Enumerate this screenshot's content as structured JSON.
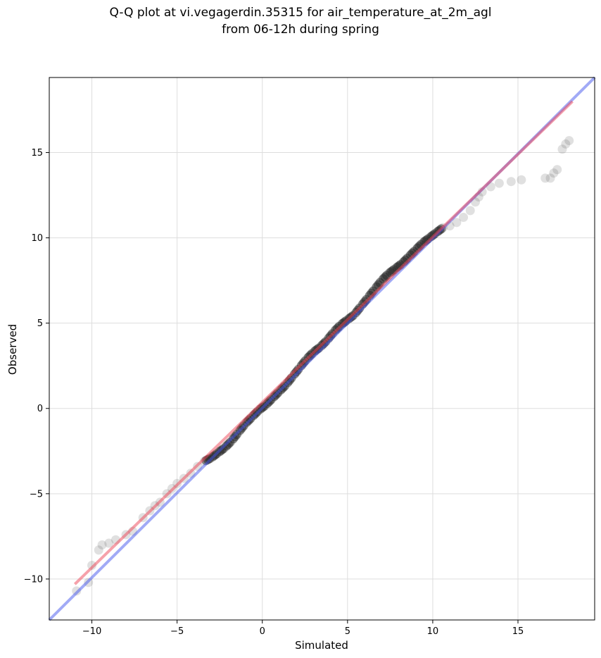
{
  "chart_data": {
    "type": "scatter",
    "title": "Q-Q plot at vi.vegagerdin.35315 for air_temperature_at_2m_agl",
    "subtitle": "from 06-12h during spring",
    "xlabel": "Simulated",
    "ylabel": "Observed",
    "xlim": [
      -12.5,
      19.5
    ],
    "ylim": [
      -12.4,
      19.4
    ],
    "xticks": [
      -10,
      -5,
      0,
      5,
      10,
      15
    ],
    "yticks": [
      -10,
      -5,
      0,
      5,
      10,
      15
    ],
    "xtick_labels": [
      "−10",
      "−5",
      "0",
      "5",
      "10",
      "15"
    ],
    "ytick_labels": [
      "−10",
      "−5",
      "0",
      "5",
      "10",
      "15"
    ],
    "grid": true,
    "colors": {
      "points": "#555555",
      "identity_line": "#4455ee",
      "fit_line": "#ee4455",
      "grid": "#dddddd"
    },
    "series": [
      {
        "type": "scatter",
        "values": [
          [
            -10.9,
            -10.7
          ],
          [
            -10.2,
            -10.2
          ],
          [
            -10.0,
            -9.2
          ],
          [
            -9.6,
            -8.3
          ],
          [
            -9.4,
            -8.0
          ],
          [
            -9.0,
            -7.9
          ],
          [
            -8.6,
            -7.7
          ],
          [
            -8.0,
            -7.4
          ],
          [
            -7.6,
            -7.2
          ],
          [
            -7.0,
            -6.4
          ],
          [
            -6.6,
            -6.0
          ],
          [
            -6.3,
            -5.7
          ],
          [
            -6.0,
            -5.5
          ],
          [
            -5.6,
            -5.0
          ],
          [
            -5.3,
            -4.7
          ],
          [
            -5.0,
            -4.4
          ],
          [
            -4.6,
            -4.1
          ],
          [
            -4.2,
            -3.8
          ],
          [
            -3.8,
            -3.4
          ],
          [
            -3.4,
            -3.1
          ],
          [
            -3.0,
            -2.9
          ],
          [
            -2.6,
            -2.6
          ],
          [
            -2.2,
            -2.3
          ],
          [
            -1.8,
            -1.9
          ],
          [
            -1.4,
            -1.4
          ],
          [
            -1.0,
            -0.9
          ],
          [
            -0.6,
            -0.5
          ],
          [
            -0.2,
            -0.1
          ],
          [
            0.2,
            0.2
          ],
          [
            0.6,
            0.6
          ],
          [
            1.0,
            1.0
          ],
          [
            1.4,
            1.4
          ],
          [
            1.8,
            1.9
          ],
          [
            2.2,
            2.4
          ],
          [
            2.6,
            2.9
          ],
          [
            3.0,
            3.3
          ],
          [
            3.4,
            3.6
          ],
          [
            3.8,
            4.0
          ],
          [
            4.2,
            4.5
          ],
          [
            4.6,
            4.9
          ],
          [
            5.0,
            5.2
          ],
          [
            5.4,
            5.5
          ],
          [
            5.8,
            6.0
          ],
          [
            6.2,
            6.5
          ],
          [
            6.6,
            7.0
          ],
          [
            7.0,
            7.5
          ],
          [
            7.4,
            7.9
          ],
          [
            7.8,
            8.2
          ],
          [
            8.2,
            8.5
          ],
          [
            8.6,
            8.9
          ],
          [
            9.0,
            9.3
          ],
          [
            9.4,
            9.7
          ],
          [
            9.8,
            10.0
          ],
          [
            10.2,
            10.3
          ],
          [
            10.6,
            10.6
          ],
          [
            11.0,
            10.7
          ],
          [
            11.4,
            10.9
          ],
          [
            11.8,
            11.2
          ],
          [
            12.2,
            11.6
          ],
          [
            12.5,
            12.1
          ],
          [
            12.7,
            12.4
          ],
          [
            12.9,
            12.7
          ],
          [
            13.4,
            13.0
          ],
          [
            13.9,
            13.2
          ],
          [
            14.6,
            13.3
          ],
          [
            15.2,
            13.4
          ],
          [
            16.6,
            13.5
          ],
          [
            16.9,
            13.5
          ],
          [
            17.1,
            13.8
          ],
          [
            17.3,
            14.0
          ],
          [
            17.6,
            15.2
          ],
          [
            17.8,
            15.5
          ],
          [
            18.0,
            15.7
          ]
        ]
      },
      {
        "type": "line",
        "name": "",
        "values": [
          [
            -12.5,
            -12.4
          ],
          [
            19.5,
            19.4
          ]
        ]
      },
      {
        "type": "line",
        "name": "",
        "values": [
          [
            -11.0,
            -10.3
          ],
          [
            18.2,
            18.0
          ]
        ]
      }
    ]
  }
}
